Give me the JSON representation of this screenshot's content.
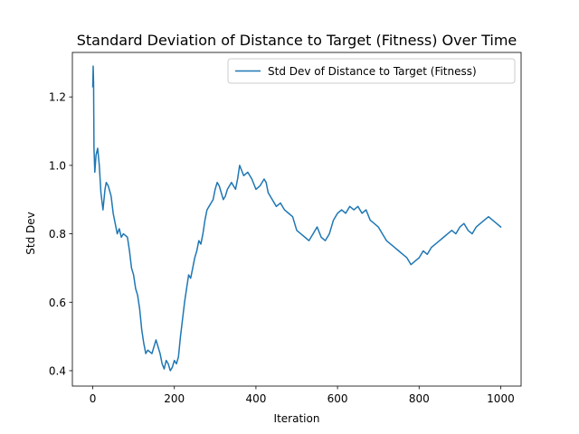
{
  "chart_data": {
    "type": "line",
    "title": "Standard Deviation of Distance to Target (Fitness) Over Time",
    "xlabel": "Iteration",
    "ylabel": "Std Dev",
    "xlim": [
      -50,
      1050
    ],
    "ylim": [
      0.355,
      1.33
    ],
    "xticks": [
      0,
      200,
      400,
      600,
      800,
      1000
    ],
    "xtick_labels": [
      "0",
      "200",
      "400",
      "600",
      "800",
      "1000"
    ],
    "yticks": [
      0.4,
      0.6,
      0.8,
      1.0,
      1.2
    ],
    "ytick_labels": [
      "0.4",
      "0.6",
      "0.8",
      "1.0",
      "1.2"
    ],
    "grid": false,
    "legend_position": "top-right",
    "series": [
      {
        "name": "Std Dev of Distance to Target (Fitness)",
        "color": "#1f77b4",
        "x": [
          0,
          1,
          2,
          3,
          5,
          8,
          12,
          16,
          20,
          25,
          30,
          33,
          38,
          45,
          50,
          55,
          60,
          65,
          70,
          75,
          80,
          85,
          90,
          95,
          100,
          105,
          110,
          115,
          120,
          125,
          130,
          135,
          140,
          145,
          150,
          155,
          160,
          165,
          170,
          175,
          180,
          185,
          190,
          195,
          200,
          205,
          210,
          215,
          220,
          225,
          230,
          235,
          240,
          245,
          250,
          255,
          260,
          265,
          270,
          275,
          280,
          285,
          290,
          295,
          300,
          305,
          310,
          315,
          320,
          325,
          330,
          340,
          350,
          355,
          360,
          370,
          380,
          390,
          400,
          410,
          420,
          425,
          430,
          440,
          450,
          460,
          470,
          480,
          490,
          500,
          510,
          520,
          530,
          540,
          550,
          560,
          570,
          580,
          590,
          600,
          610,
          620,
          630,
          640,
          650,
          660,
          670,
          680,
          690,
          700,
          710,
          720,
          730,
          740,
          750,
          760,
          770,
          780,
          790,
          800,
          810,
          820,
          830,
          840,
          850,
          860,
          870,
          880,
          890,
          900,
          910,
          920,
          930,
          940,
          950,
          960,
          970,
          980,
          990,
          1000
        ],
        "values": [
          1.23,
          1.29,
          1.24,
          1.05,
          0.98,
          1.03,
          1.05,
          1.0,
          0.92,
          0.87,
          0.93,
          0.95,
          0.94,
          0.91,
          0.86,
          0.83,
          0.8,
          0.815,
          0.79,
          0.8,
          0.795,
          0.79,
          0.75,
          0.7,
          0.68,
          0.64,
          0.62,
          0.58,
          0.52,
          0.48,
          0.45,
          0.46,
          0.455,
          0.45,
          0.47,
          0.49,
          0.47,
          0.45,
          0.42,
          0.405,
          0.43,
          0.42,
          0.4,
          0.41,
          0.43,
          0.42,
          0.44,
          0.5,
          0.55,
          0.6,
          0.64,
          0.68,
          0.67,
          0.7,
          0.73,
          0.75,
          0.78,
          0.77,
          0.8,
          0.84,
          0.87,
          0.88,
          0.89,
          0.9,
          0.93,
          0.95,
          0.94,
          0.92,
          0.9,
          0.91,
          0.93,
          0.95,
          0.93,
          0.96,
          1.0,
          0.97,
          0.98,
          0.96,
          0.93,
          0.94,
          0.96,
          0.95,
          0.92,
          0.9,
          0.88,
          0.89,
          0.87,
          0.86,
          0.85,
          0.81,
          0.8,
          0.79,
          0.78,
          0.8,
          0.82,
          0.79,
          0.78,
          0.8,
          0.84,
          0.86,
          0.87,
          0.86,
          0.88,
          0.87,
          0.88,
          0.86,
          0.87,
          0.84,
          0.83,
          0.82,
          0.8,
          0.78,
          0.77,
          0.76,
          0.75,
          0.74,
          0.73,
          0.71,
          0.72,
          0.73,
          0.75,
          0.74,
          0.76,
          0.77,
          0.78,
          0.79,
          0.8,
          0.81,
          0.8,
          0.82,
          0.83,
          0.81,
          0.8,
          0.82,
          0.83,
          0.84,
          0.85,
          0.84,
          0.83,
          0.82
        ]
      }
    ]
  }
}
